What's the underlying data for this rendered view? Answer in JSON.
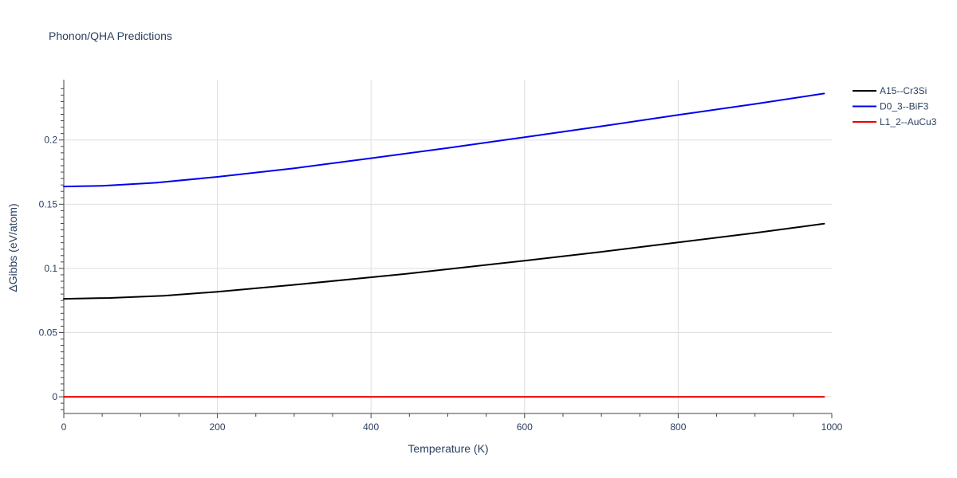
{
  "chart_data": {
    "type": "line",
    "title": "Phonon/QHA Predictions",
    "xlabel": "Temperature (K)",
    "ylabel": "ΔGibbs (eV/atom)",
    "xlim": [
      0,
      1000
    ],
    "ylim": [
      -0.013,
      0.247
    ],
    "xticks": [
      0,
      200,
      400,
      600,
      800,
      1000
    ],
    "xtick_labels": [
      "0",
      "200",
      "400",
      "600",
      "800",
      "1000"
    ],
    "yticks": [
      0,
      0.05,
      0.1,
      0.15,
      0.2
    ],
    "ytick_labels": [
      "0",
      "0.05",
      "0.1",
      "0.15",
      "0.2"
    ],
    "grid": true,
    "legend_position": "top-right",
    "series": [
      {
        "name": "A15--Cr3Si",
        "color": "#000000",
        "x": [
          0,
          60,
          130,
          200,
          300,
          450,
          600,
          700,
          800,
          900,
          990
        ],
        "y": [
          0.0763,
          0.077,
          0.0787,
          0.0818,
          0.0872,
          0.096,
          0.106,
          0.1129,
          0.1203,
          0.1276,
          0.1348
        ]
      },
      {
        "name": "D0_3--BiF3",
        "color": "#0000ee",
        "x": [
          0,
          50,
          120,
          200,
          300,
          400,
          500,
          600,
          700,
          800,
          900,
          990
        ],
        "y": [
          0.1638,
          0.1643,
          0.1667,
          0.1713,
          0.178,
          0.1858,
          0.1938,
          0.2022,
          0.2107,
          0.2195,
          0.2281,
          0.2362
        ]
      },
      {
        "name": "L1_2--AuCu3",
        "color": "#ee0000",
        "x": [
          0,
          990
        ],
        "y": [
          0,
          0
        ]
      }
    ]
  }
}
